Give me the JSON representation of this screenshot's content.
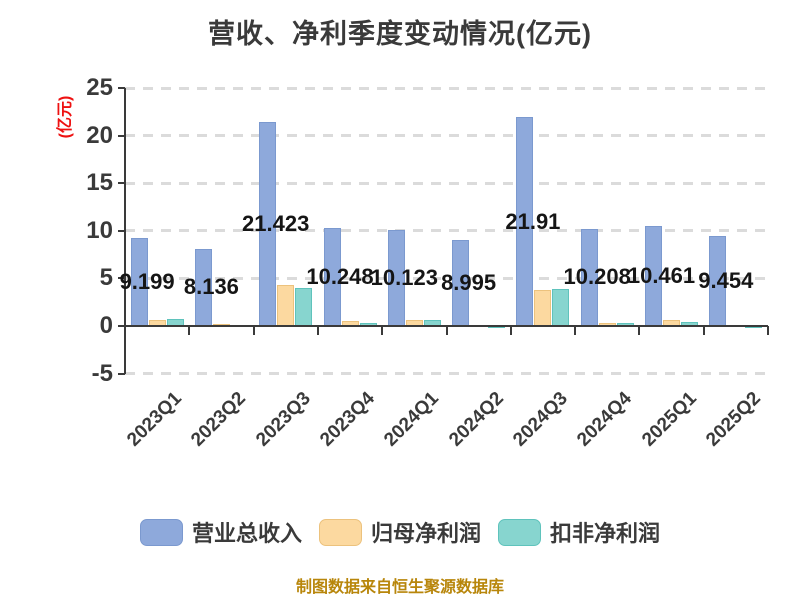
{
  "chart_data": {
    "type": "bar",
    "title": "营收、净利季度变动情况(亿元)",
    "ylabel": "(亿元)",
    "source_note": "制图数据来自恒生聚源数据库",
    "categories": [
      "2023Q1",
      "2023Q2",
      "2023Q3",
      "2023Q4",
      "2024Q1",
      "2024Q2",
      "2024Q3",
      "2024Q4",
      "2025Q1",
      "2025Q2"
    ],
    "series": [
      {
        "id": "total-revenue",
        "name": "营业总收入",
        "color": "#8ea9db",
        "border_color": "#7b99cf",
        "values": [
          9.199,
          8.136,
          21.423,
          10.248,
          10.123,
          8.995,
          21.91,
          10.208,
          10.461,
          9.454
        ],
        "labels": [
          "9.199",
          "8.136",
          "21.423",
          "10.248",
          "10.123",
          "8.995",
          "21.91",
          "10.208",
          "10.461",
          "9.454"
        ]
      },
      {
        "id": "net-profit",
        "name": "归母净利润",
        "color": "#fcd9a0",
        "border_color": "#ecc27d",
        "values": [
          0.65,
          0.2,
          4.3,
          0.55,
          0.6,
          0.1,
          3.8,
          0.3,
          0.58,
          0.12
        ]
      },
      {
        "id": "non-gaap-net-profit",
        "name": "扣非净利润",
        "color": "#87d5cf",
        "border_color": "#5fc3bc",
        "values": [
          0.7,
          0.1,
          4.0,
          0.35,
          0.65,
          -0.15,
          3.9,
          0.35,
          0.42,
          -0.1
        ]
      }
    ],
    "y_ticks": [
      25,
      20,
      15,
      10,
      5,
      0,
      -5
    ],
    "ylim": [
      -5,
      25
    ],
    "grid": "horizontal dashed",
    "gridline_color": "#dbdbdb",
    "axis_color": "#3a3a3a",
    "value_label_series": "营业总收入",
    "legend_position": "bottom"
  }
}
